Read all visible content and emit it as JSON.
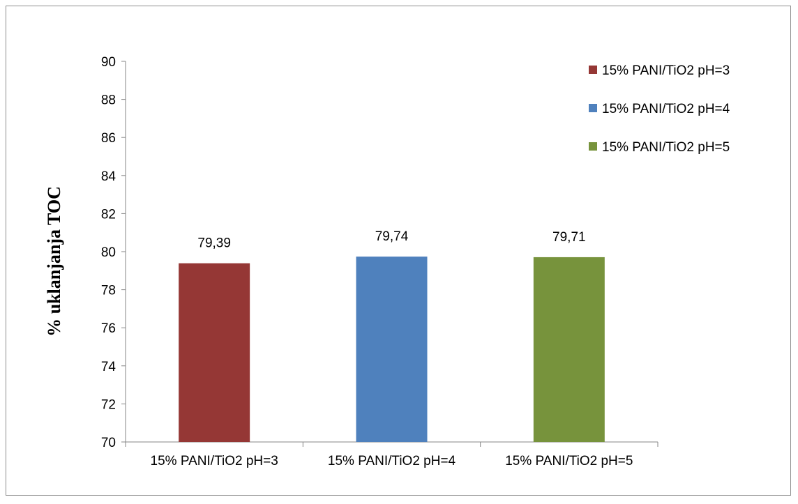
{
  "chart_data": {
    "type": "bar",
    "title": "",
    "xlabel": "",
    "ylabel": "% uklanjanja TOC",
    "ylim": [
      70,
      90
    ],
    "yticks": [
      70,
      72,
      74,
      76,
      78,
      80,
      82,
      84,
      86,
      88,
      90
    ],
    "categories": [
      "15% PANI/TiO2 pH=3",
      "15% PANI/TiO2 pH=4",
      "15% PANI/TiO2 pH=5"
    ],
    "values": [
      79.39,
      79.74,
      79.71
    ],
    "value_labels": [
      "79,39",
      "79,74",
      "79,71"
    ],
    "colors": [
      "#953735",
      "#4f81bd",
      "#77933c"
    ],
    "legend": {
      "placement": "top-right",
      "entries": [
        "15% PANI/TiO2 pH=3",
        "15% PANI/TiO2 pH=4",
        "15% PANI/TiO2 pH=5"
      ]
    },
    "grid": false
  }
}
